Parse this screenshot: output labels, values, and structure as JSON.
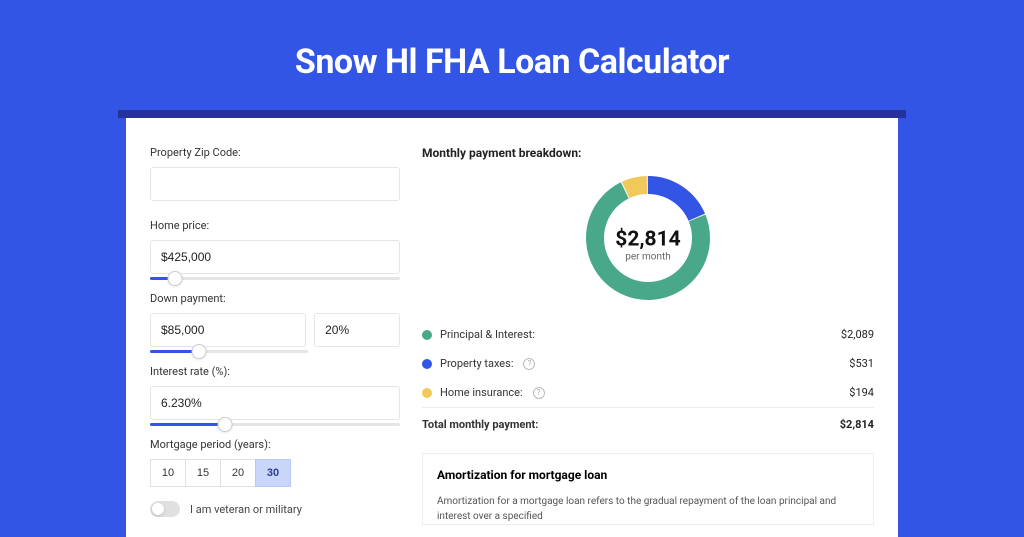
{
  "title": "Snow Hl FHA Loan Calculator",
  "form": {
    "zip": {
      "label": "Property Zip Code:",
      "value": ""
    },
    "price": {
      "label": "Home price:",
      "value": "$425,000",
      "slider_pct": 10
    },
    "down": {
      "label": "Down payment:",
      "value": "$85,000",
      "pct": "20%",
      "slider_pct": 20
    },
    "rate": {
      "label": "Interest rate (%):",
      "value": "6.230%",
      "slider_pct": 30
    },
    "period": {
      "label": "Mortgage period (years):",
      "options": [
        "10",
        "15",
        "20",
        "30"
      ],
      "active": "30"
    },
    "veteran": {
      "label": "I am veteran or military",
      "on": false
    }
  },
  "breakdown": {
    "title": "Monthly payment breakdown:",
    "center_value": "$2,814",
    "center_sub": "per month",
    "rows": [
      {
        "label": "Principal & Interest:",
        "value": "$2,089",
        "color": "#4aa88a",
        "help": false
      },
      {
        "label": "Property taxes:",
        "value": "$531",
        "color": "#3355e5",
        "help": true
      },
      {
        "label": "Home insurance:",
        "value": "$194",
        "color": "#f0c95b",
        "help": true
      }
    ],
    "total_label": "Total monthly payment:",
    "total_value": "$2,814",
    "donut": {
      "slices": [
        {
          "color": "#4aa88a",
          "pct": 74.2
        },
        {
          "color": "#3355e5",
          "pct": 18.9
        },
        {
          "color": "#f0c95b",
          "pct": 6.9
        }
      ],
      "radius": 62,
      "thickness": 18
    }
  },
  "amort": {
    "title": "Amortization for mortgage loan",
    "text": "Amortization for a mortgage loan refers to the gradual repayment of the loan principal and interest over a specified"
  },
  "colors": {
    "bg": "#3355e5",
    "shadow": "#26329a"
  }
}
